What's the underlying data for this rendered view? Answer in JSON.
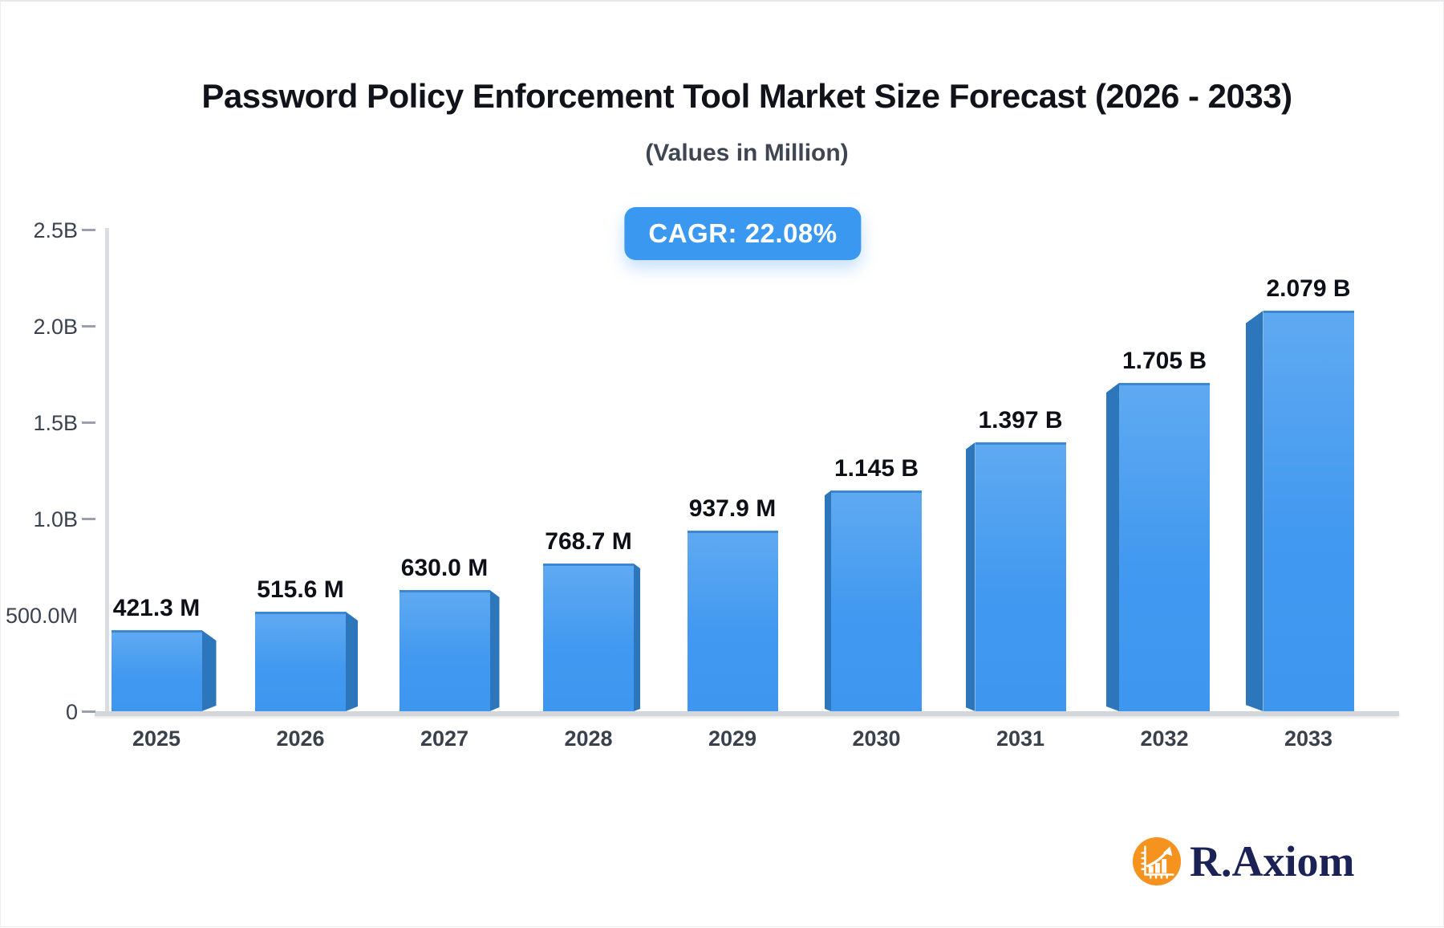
{
  "title": "Password Policy Enforcement Tool Market Size Forecast (2026 - 2033)",
  "subtitle": "(Values in Million)",
  "cagr_label": "CAGR: 22.08%",
  "logo": {
    "text": "R.Axiom",
    "icon": "bar-chart-growth-icon",
    "icon_bg_color": "#F6921E",
    "text_color": "#1B2356"
  },
  "chart_data": {
    "type": "bar",
    "title": "Password Policy Enforcement Tool Market Size Forecast (2026 - 2033)",
    "subtitle": "(Values in Million)",
    "annotation": "CAGR: 22.08%",
    "categories": [
      "2025",
      "2026",
      "2027",
      "2028",
      "2029",
      "2030",
      "2031",
      "2032",
      "2033"
    ],
    "values_in_millions": [
      421.3,
      515.6,
      630.0,
      768.7,
      937.9,
      1145,
      1397,
      1705,
      2079
    ],
    "value_labels": [
      "421.3 M",
      "515.6 M",
      "630.0 M",
      "768.7 M",
      "937.9 M",
      "1.145 B",
      "1.397 B",
      "1.705 B",
      "2.079 B"
    ],
    "xlabel": "",
    "ylabel": "",
    "ylim_millions": [
      0,
      2500
    ],
    "y_ticks": [
      {
        "label": "2.5B",
        "value_millions": 2500,
        "dash": true
      },
      {
        "label": "2.0B",
        "value_millions": 2000,
        "dash": true
      },
      {
        "label": "1.5B",
        "value_millions": 1500,
        "dash": true
      },
      {
        "label": "1.0B",
        "value_millions": 1000,
        "dash": true
      },
      {
        "label": "500.0M",
        "value_millions": 500,
        "dash": false
      },
      {
        "label": "0",
        "value_millions": 0,
        "dash": true
      }
    ],
    "grid": false,
    "legend": false,
    "bar_front_color": "#4299F0",
    "bar_side_color": "#2E76BB",
    "badge_color": "#3B98F0"
  }
}
